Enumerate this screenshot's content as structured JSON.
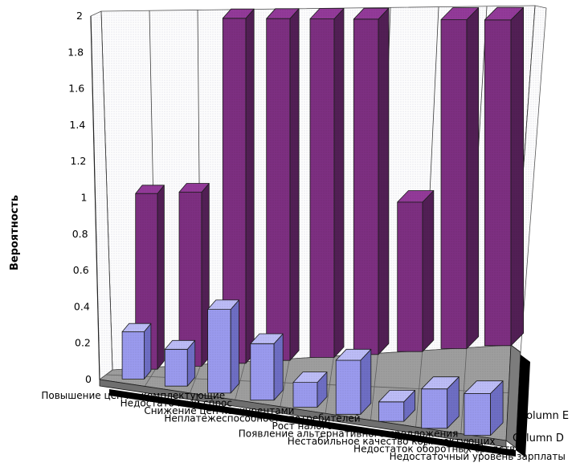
{
  "chart_data": {
    "type": "bar",
    "style": "3d-deep-columns",
    "title": "",
    "ylabel": "Вероятность",
    "xlabel": "",
    "ylim": [
      0,
      2
    ],
    "ytick_step": 0.2,
    "ytick_labels": [
      "0",
      "0.2",
      "0.4",
      "0.6",
      "0.8",
      "1",
      "1.2",
      "1.4",
      "1.6",
      "1.8",
      "2"
    ],
    "grid": {
      "wall_vertical_category_lines": true,
      "horizontal_value_lines": false,
      "floor_tiles": true
    },
    "categories": [
      "Повышение цен на комплектующие",
      "Недостаточный спрос",
      "Снижение цен конкурентами",
      "Неплатежеспособность потребителей",
      "Рост налогов",
      "Появление альтернативного предложения",
      "Нестабильное качество комплектующих",
      "Недостаток оборотных средств",
      "Недостаточный уровень зарплаты"
    ],
    "series": [
      {
        "name": "Column D",
        "row": "front",
        "color_front": "#9a9aee",
        "color_side": "#6e6ec4",
        "color_top": "#bcbcf7",
        "values": [
          0.26,
          0.2,
          0.45,
          0.3,
          0.13,
          0.28,
          0.1,
          0.2,
          0.21
        ]
      },
      {
        "name": "Column E",
        "row": "back",
        "color_front": "#7d2f81",
        "color_side": "#521f55",
        "color_top": "#933a99",
        "values": [
          1,
          1,
          2,
          2,
          2,
          2,
          0.9,
          2,
          2
        ]
      }
    ],
    "series_axis_labels": [
      {
        "text": "Column E",
        "x": 646,
        "y": 522
      },
      {
        "text": "Column D",
        "x": 638,
        "y": 550
      }
    ],
    "colors": {
      "background": "#ffffff",
      "wall": "#fdfdfd",
      "wall_grid_line": "#3c3c3c",
      "floor": "#9e9e9e",
      "floor_grid_line": "#5e5e5e",
      "floor_front_edge": "#6f6f6f",
      "floor_right_edge": "#7c7c7c",
      "shadow": "#000000",
      "outline": "#1c1c1c",
      "axis_line": "#222222",
      "text": "#000000"
    }
  }
}
